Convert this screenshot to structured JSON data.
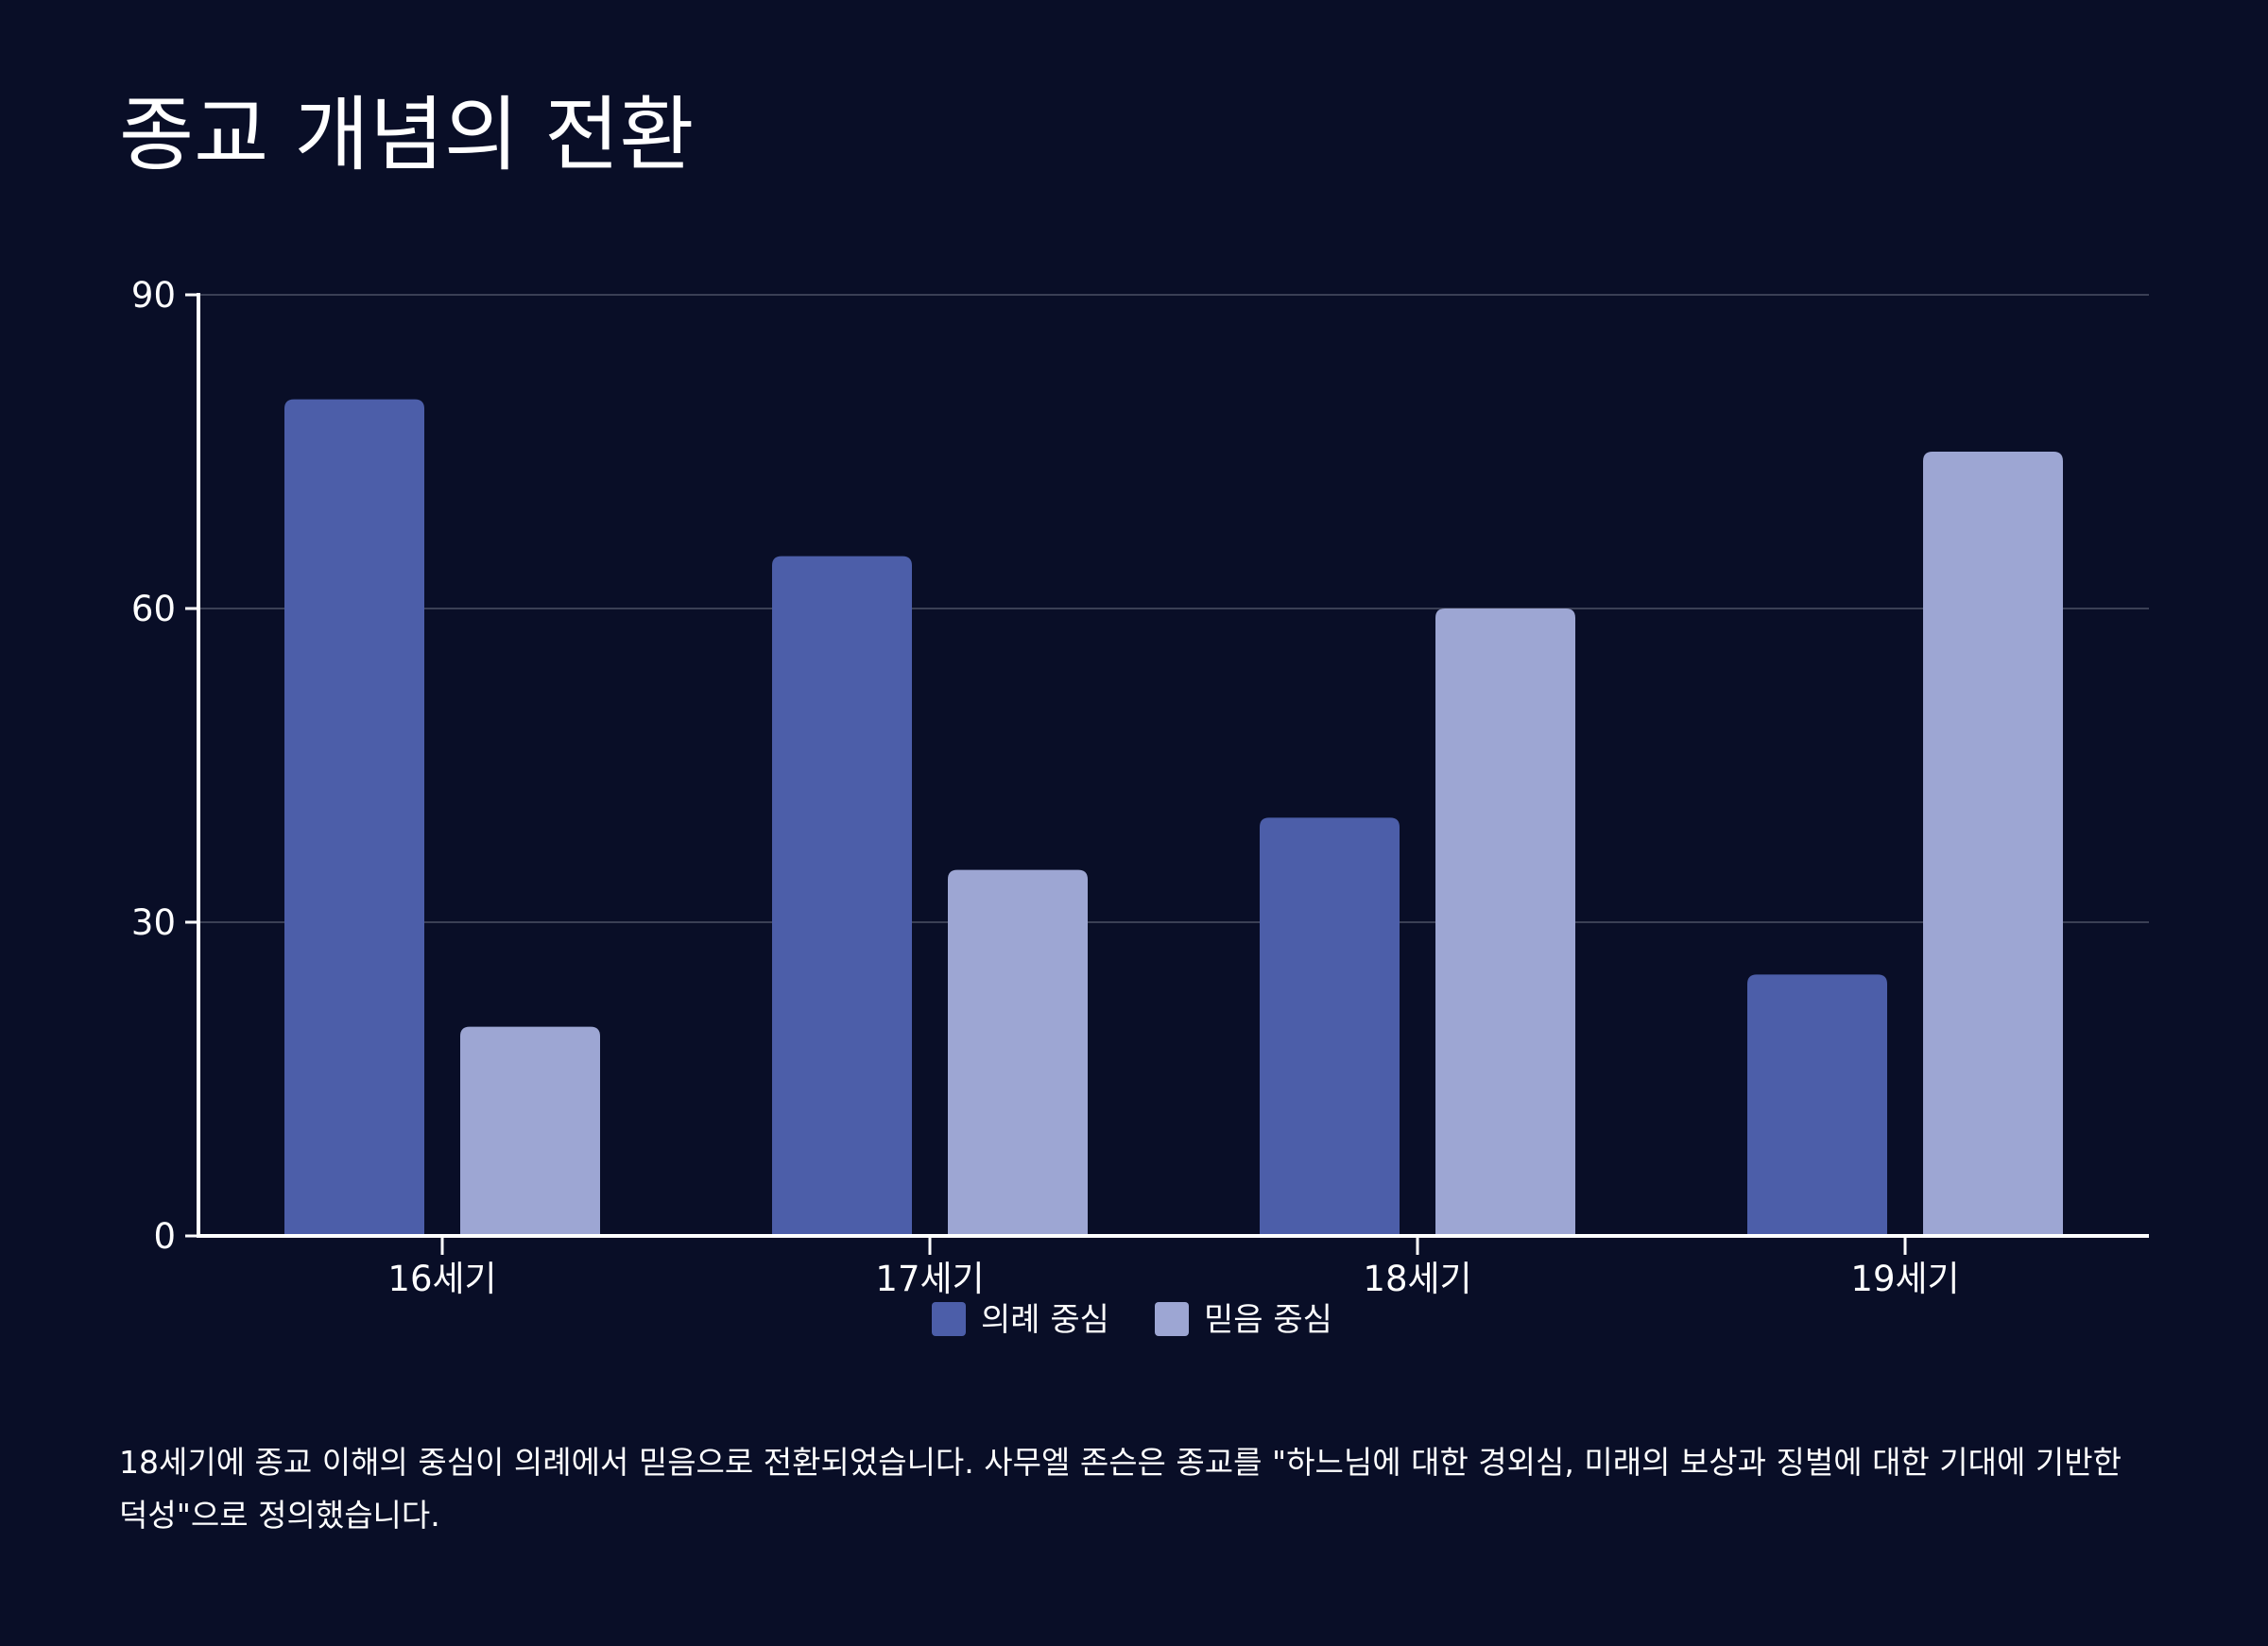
{
  "title": "종교 개념의 전환",
  "caption": "18세기에 종교 이해의 중심이 의례에서 믿음으로 전환되었습니다. 사무엘 존슨은 종교를 \"하느님에 대한 경외심, 미래의 보상과 징벌에 대한 기대에 기반한 덕성\"으로 정의했습니다.",
  "colors": {
    "background": "#090e27",
    "series_1": "#4c5ea9",
    "series_2": "#9da6d3",
    "gridline": "#3a3f55",
    "axis": "#ffffff"
  },
  "chart_data": {
    "type": "bar",
    "title": "종교 개념의 전환",
    "xlabel": "",
    "ylabel": "",
    "categories": [
      "16세기",
      "17세기",
      "18세기",
      "19세기"
    ],
    "series": [
      {
        "name": "의례 중심",
        "values": [
          80,
          65,
          40,
          25
        ]
      },
      {
        "name": "믿음 중심",
        "values": [
          20,
          35,
          60,
          75
        ]
      }
    ],
    "ylim": [
      0,
      90
    ],
    "yticks": [
      "0",
      "30",
      "60",
      "90"
    ],
    "grid": true,
    "legend": "bottom-center"
  }
}
